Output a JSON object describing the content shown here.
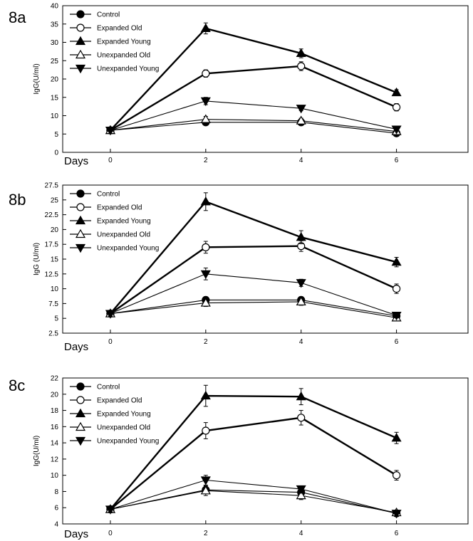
{
  "chart_data": [
    {
      "type": "line",
      "panel_label": "8a",
      "ylabel": "IgG(U/ml)",
      "xlabel": "Days",
      "x": [
        0,
        2,
        4,
        6
      ],
      "xlim": [
        -1,
        7.5
      ],
      "ylim": [
        0,
        40
      ],
      "yticks": [
        0,
        5,
        10,
        15,
        20,
        25,
        30,
        35,
        40
      ],
      "ytick_labels": [
        "0",
        "5",
        "10",
        "15",
        "20",
        "25",
        "30",
        "35",
        "40"
      ],
      "xtick_labels": [
        "0",
        "2",
        "4",
        "6"
      ],
      "legend_position": "top-left",
      "series": [
        {
          "name": "Control",
          "marker": "circle-filled",
          "values": [
            6,
            8.2,
            8.2,
            5.2
          ],
          "errors": [
            0.5,
            0.6,
            0.6,
            0.5
          ]
        },
        {
          "name": "Expanded Old",
          "marker": "circle-open",
          "values": [
            6,
            21.5,
            23.5,
            12.3
          ],
          "errors": [
            0.5,
            1.0,
            1.2,
            1.0
          ]
        },
        {
          "name": "Expanded Young",
          "marker": "triangle-up-filled",
          "values": [
            6,
            33.8,
            27,
            16.3
          ],
          "errors": [
            0.5,
            1.5,
            1.2,
            0.8
          ]
        },
        {
          "name": "Unexpanded Old",
          "marker": "triangle-up-open",
          "values": [
            6,
            9.0,
            8.6,
            5.7
          ],
          "errors": [
            0.5,
            0.8,
            0.7,
            0.5
          ]
        },
        {
          "name": "Unexpanded Young",
          "marker": "triangle-down-filled",
          "values": [
            6,
            14,
            12,
            6.3
          ],
          "errors": [
            0.5,
            1.0,
            0.6,
            0.5
          ]
        }
      ]
    },
    {
      "type": "line",
      "panel_label": "8b",
      "ylabel": "IgG (U/ml)",
      "xlabel": "Days",
      "x": [
        0,
        2,
        4,
        6
      ],
      "xlim": [
        -1,
        7.5
      ],
      "ylim": [
        2.5,
        27.5
      ],
      "yticks": [
        2.5,
        5,
        7.5,
        10,
        12.5,
        15,
        17.5,
        20,
        22.5,
        25,
        27.5
      ],
      "ytick_labels": [
        "2.5",
        "5",
        "7.5",
        "10",
        "12.5",
        "15",
        "17.5",
        "20",
        "22.5",
        "25",
        "27.5"
      ],
      "xtick_labels": [
        "0",
        "2",
        "4",
        "6"
      ],
      "legend_position": "top-left",
      "series": [
        {
          "name": "Control",
          "marker": "circle-filled",
          "values": [
            5.8,
            8.1,
            8.1,
            5.4
          ],
          "errors": [
            0.4,
            0.5,
            0.5,
            0.4
          ]
        },
        {
          "name": "Expanded Old",
          "marker": "circle-open",
          "values": [
            5.8,
            17,
            17.2,
            10
          ],
          "errors": [
            0.4,
            1.0,
            0.9,
            0.8
          ]
        },
        {
          "name": "Expanded Young",
          "marker": "triangle-up-filled",
          "values": [
            5.8,
            24.7,
            18.7,
            14.5
          ],
          "errors": [
            0.4,
            1.5,
            1.1,
            0.8
          ]
        },
        {
          "name": "Unexpanded Old",
          "marker": "triangle-up-open",
          "values": [
            5.8,
            7.6,
            7.8,
            5.1
          ],
          "errors": [
            0.4,
            0.6,
            0.6,
            0.4
          ]
        },
        {
          "name": "Unexpanded Young",
          "marker": "triangle-down-filled",
          "values": [
            5.8,
            12.5,
            11,
            5.5
          ],
          "errors": [
            0.4,
            1.0,
            0.6,
            0.4
          ]
        }
      ]
    },
    {
      "type": "line",
      "panel_label": "8c",
      "ylabel": "IgG(U/ml)",
      "xlabel": "Days",
      "x": [
        0,
        2,
        4,
        6
      ],
      "xlim": [
        -1,
        7.5
      ],
      "ylim": [
        4,
        22
      ],
      "yticks": [
        4,
        6,
        8,
        10,
        12,
        14,
        16,
        18,
        20,
        22
      ],
      "ytick_labels": [
        "4",
        "6",
        "8",
        "10",
        "12",
        "14",
        "16",
        "18",
        "20",
        "22"
      ],
      "xtick_labels": [
        "0",
        "2",
        "4",
        "6"
      ],
      "legend_position": "top-left",
      "series": [
        {
          "name": "Control",
          "marker": "circle-filled",
          "values": [
            5.8,
            8.2,
            7.9,
            5.3
          ],
          "errors": [
            0.3,
            0.4,
            0.4,
            0.3
          ]
        },
        {
          "name": "Expanded Old",
          "marker": "circle-open",
          "values": [
            5.8,
            15.5,
            17.1,
            10
          ],
          "errors": [
            0.3,
            1.0,
            0.9,
            0.6
          ]
        },
        {
          "name": "Expanded Young",
          "marker": "triangle-up-filled",
          "values": [
            5.8,
            19.8,
            19.7,
            14.6
          ],
          "errors": [
            0.3,
            1.3,
            1.0,
            0.7
          ]
        },
        {
          "name": "Unexpanded Old",
          "marker": "triangle-up-open",
          "values": [
            5.8,
            8.1,
            7.5,
            5.4
          ],
          "errors": [
            0.3,
            0.6,
            0.5,
            0.3
          ]
        },
        {
          "name": "Unexpanded Young",
          "marker": "triangle-down-filled",
          "values": [
            5.8,
            9.4,
            8.3,
            5.3
          ],
          "errors": [
            0.3,
            0.6,
            0.4,
            0.3
          ]
        }
      ]
    }
  ]
}
